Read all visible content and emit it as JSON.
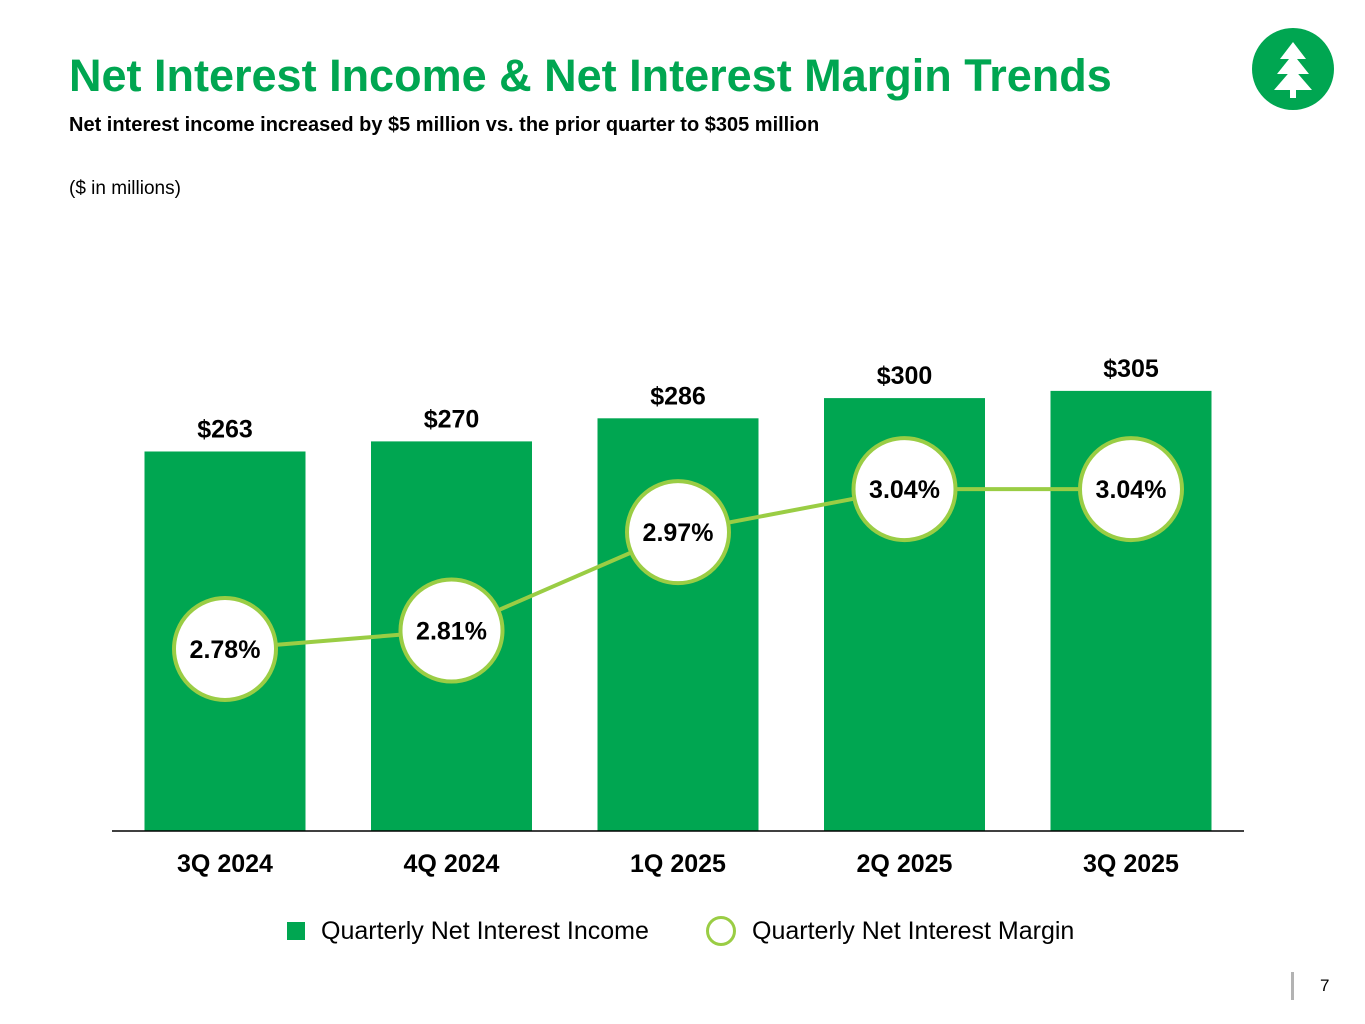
{
  "header": {
    "title": "Net Interest Income & Net Interest Margin Trends",
    "subtitle": "Net interest income increased by $5 million vs. the prior quarter to $305 million",
    "units_note": "($ in millions)"
  },
  "logo": {
    "icon": "tree-logo-icon",
    "color": "#00a651"
  },
  "colors": {
    "bar": "#00a651",
    "line": "#9acd44",
    "title": "#00a651"
  },
  "chart_data": {
    "type": "bar",
    "categories": [
      "3Q 2024",
      "4Q 2024",
      "1Q 2025",
      "2Q 2025",
      "3Q 2025"
    ],
    "series": [
      {
        "name": "Quarterly Net Interest Income",
        "type": "bar",
        "values": [
          263,
          270,
          286,
          300,
          305
        ],
        "labels": [
          "$263",
          "$270",
          "$286",
          "$300",
          "$305"
        ]
      },
      {
        "name": "Quarterly Net Interest Margin",
        "type": "line",
        "values": [
          2.78,
          2.81,
          2.97,
          3.04,
          3.04
        ],
        "labels": [
          "2.78%",
          "2.81%",
          "2.97%",
          "3.04%",
          "3.04%"
        ]
      }
    ],
    "legend": [
      "Quarterly Net Interest Income",
      "Quarterly Net Interest Margin"
    ],
    "legend_position": "bottom"
  },
  "footer": {
    "page_number": "7"
  }
}
